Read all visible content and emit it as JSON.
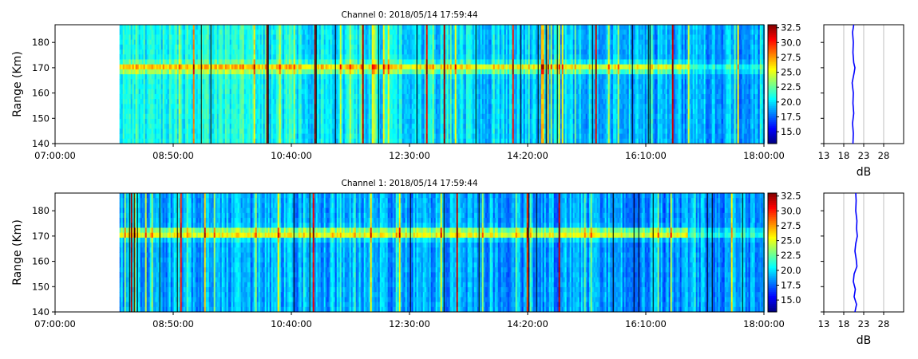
{
  "chart_data": [
    {
      "type": "heatmap",
      "title": "Channel 0: 2018/05/14 17:59:44",
      "ylabel": "Range (Km)",
      "xlabel": "",
      "x_ticks": [
        "07:00:00",
        "08:50:00",
        "10:40:00",
        "12:30:00",
        "14:20:00",
        "16:10:00",
        "18:00:00"
      ],
      "xlim": [
        "07:00:00",
        "18:00:00"
      ],
      "data_start": "08:00:00",
      "y_ticks": [
        140,
        150,
        160,
        170,
        180
      ],
      "ylim": [
        140,
        187
      ],
      "colormap": "jet",
      "colorbar_range": [
        13,
        33
      ],
      "colorbar_ticks": [
        "15.0",
        "17.5",
        "20.0",
        "22.5",
        "25.0",
        "27.5",
        "30.0",
        "32.5"
      ],
      "background_level_db": 21,
      "echo_layer": {
        "range_km": 170,
        "peak_level_db": 27
      },
      "profile": {
        "xlabel": "dB",
        "x_ticks": [
          13,
          18,
          23,
          28
        ],
        "xlim": [
          13,
          33
        ],
        "grid": true,
        "line_color": "#0000ff",
        "range_km": [
          140,
          144,
          148,
          152,
          156,
          160,
          164,
          168,
          170,
          172,
          176,
          180,
          184,
          187
        ],
        "db": [
          20.3,
          20.4,
          20.2,
          20.5,
          20.3,
          20.4,
          20.1,
          20.6,
          20.8,
          20.5,
          20.3,
          20.4,
          20.2,
          20.5
        ]
      }
    },
    {
      "type": "heatmap",
      "title": "Channel 1: 2018/05/14 17:59:44",
      "ylabel": "Range (Km)",
      "xlabel": "",
      "x_ticks": [
        "07:00:00",
        "08:50:00",
        "10:40:00",
        "12:30:00",
        "14:20:00",
        "16:10:00",
        "18:00:00"
      ],
      "xlim": [
        "07:00:00",
        "18:00:00"
      ],
      "data_start": "08:00:00",
      "y_ticks": [
        140,
        150,
        160,
        170,
        180
      ],
      "ylim": [
        140,
        187
      ],
      "colormap": "jet",
      "colorbar_range": [
        13,
        33
      ],
      "colorbar_ticks": [
        "15.0",
        "17.5",
        "20.0",
        "22.5",
        "25.0",
        "27.5",
        "30.0",
        "32.5"
      ],
      "background_level_db": 19,
      "echo_layer": {
        "range_km": 171,
        "peak_level_db": 26
      },
      "profile": {
        "xlabel": "dB",
        "x_ticks": [
          13,
          18,
          23,
          28
        ],
        "xlim": [
          13,
          33
        ],
        "grid": true,
        "line_color": "#0000ff",
        "range_km": [
          140,
          143,
          146,
          149,
          152,
          155,
          158,
          161,
          164,
          167,
          170,
          173,
          176,
          180,
          184,
          187
        ],
        "db": [
          20.8,
          21.2,
          20.6,
          20.9,
          20.4,
          20.6,
          21.3,
          21.1,
          20.8,
          21.0,
          21.4,
          21.2,
          21.3,
          21.0,
          21.1,
          21.0
        ]
      }
    }
  ]
}
